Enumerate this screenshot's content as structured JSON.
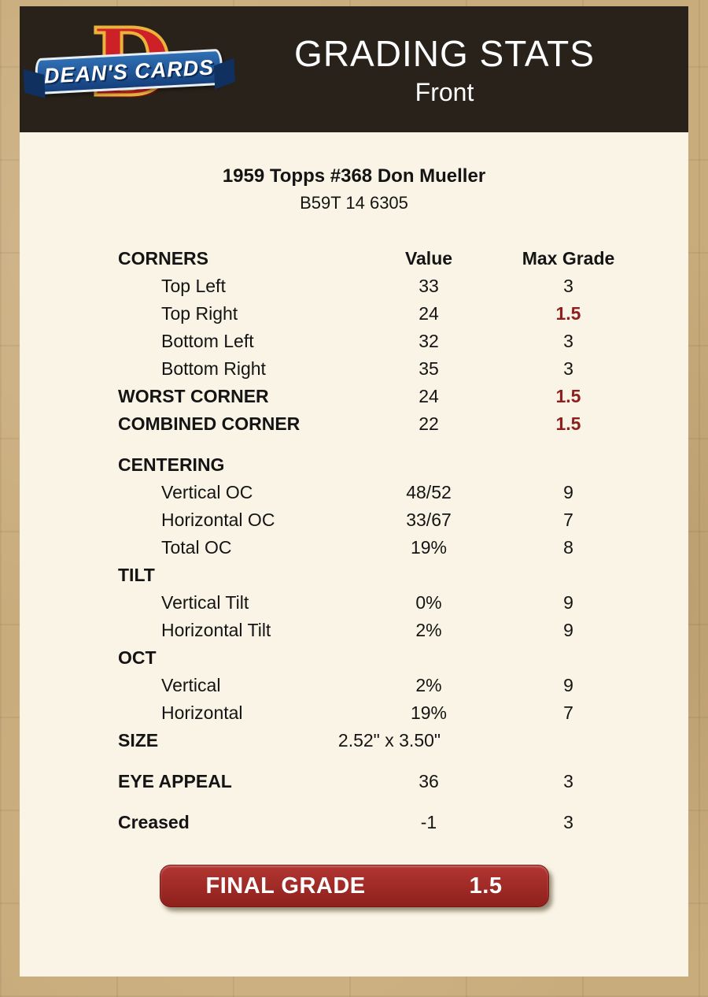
{
  "header": {
    "logo": {
      "brand": "DEAN'S CARDS",
      "letter": "D"
    },
    "title": "GRADING STATS",
    "subtitle": "Front"
  },
  "card": {
    "title": "1959 Topps #368 Don Mueller",
    "serial": "B59T 14 6305"
  },
  "table": {
    "rows": [
      {
        "label": "CORNERS",
        "value": "Value",
        "max": "Max Grade"
      },
      {
        "label": "Top Left",
        "value": "33",
        "max": "3"
      },
      {
        "label": "Top Right",
        "value": "24",
        "max": "1.5"
      },
      {
        "label": "Bottom Left",
        "value": "32",
        "max": "3"
      },
      {
        "label": "Bottom Right",
        "value": "35",
        "max": "3"
      },
      {
        "label": "WORST CORNER",
        "value": "24",
        "max": "1.5"
      },
      {
        "label": "COMBINED CORNER",
        "value": "22",
        "max": "1.5"
      },
      {
        "label": "CENTERING",
        "value": "",
        "max": ""
      },
      {
        "label": "Vertical OC",
        "value": "48/52",
        "max": "9"
      },
      {
        "label": "Horizontal OC",
        "value": "33/67",
        "max": "7"
      },
      {
        "label": "Total OC",
        "value": "19%",
        "max": "8"
      },
      {
        "label": "TILT",
        "value": "",
        "max": ""
      },
      {
        "label": "Vertical Tilt",
        "value": "0%",
        "max": "9"
      },
      {
        "label": "Horizontal Tilt",
        "value": "2%",
        "max": "9"
      },
      {
        "label": "OCT",
        "value": "",
        "max": ""
      },
      {
        "label": "Vertical",
        "value": "2%",
        "max": "9"
      },
      {
        "label": "Horizontal",
        "value": "19%",
        "max": "7"
      },
      {
        "label": "SIZE",
        "value": "2.52\" x 3.50\"",
        "max": ""
      },
      {
        "label": "EYE APPEAL",
        "value": "36",
        "max": "3"
      },
      {
        "label": "Creased",
        "value": "-1",
        "max": "3"
      }
    ]
  },
  "final": {
    "label": "FINAL GRADE",
    "value": "1.5"
  },
  "colors": {
    "header_bg": "#29221a",
    "panel_bg": "#f9f4e5",
    "background_tan": "#c9ac7c",
    "highlight_red": "#8e1f1c",
    "badge_red": "#9e2b26",
    "ribbon_blue": "#1d4f9e"
  }
}
